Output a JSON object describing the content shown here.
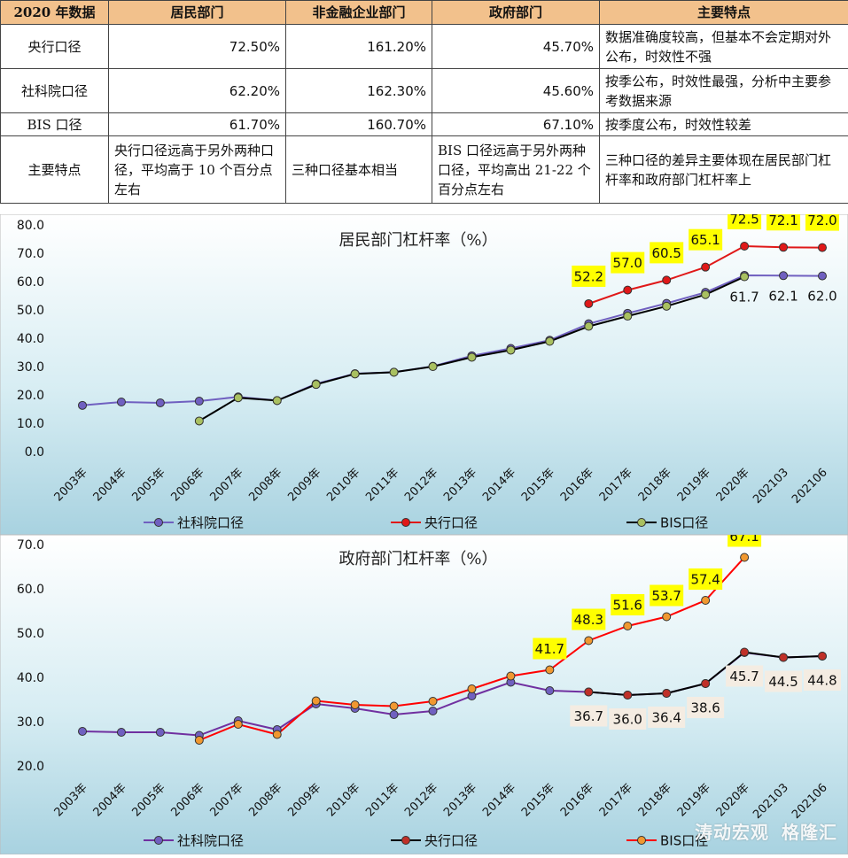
{
  "table": {
    "headers": [
      "2020 年数据",
      "居民部门",
      "非金融企业部门",
      "政府部门",
      "主要特点"
    ],
    "rows": [
      {
        "label": "央行口径",
        "household": "72.50%",
        "corporate": "161.20%",
        "government": "45.70%",
        "feature": "数据准确度较高，但基本不会定期对外公布，时效性不强"
      },
      {
        "label": "社科院口径",
        "household": "62.20%",
        "corporate": "162.30%",
        "government": "45.60%",
        "feature": "按季公布，时效性最强，分析中主要参考数据来源"
      },
      {
        "label": "BIS 口径",
        "household": "61.70%",
        "corporate": "160.70%",
        "government": "67.10%",
        "feature": "按季度公布，时效性较差"
      },
      {
        "label": "主要特点",
        "household": "央行口径远高于另外两种口径，平均高于 10 个百分点左右",
        "corporate": "三种口径基本相当",
        "government": "BIS 口径远高于另外两种口径，平均高出 21-22 个百分点左右",
        "feature": "三种口径的差异主要体现在居民部门杠杆率和政府部门杠杆率上"
      }
    ]
  },
  "chart_data": [
    {
      "type": "line",
      "title": "居民部门杠杆率（%）",
      "categories": [
        "2003年",
        "2004年",
        "2005年",
        "2006年",
        "2007年",
        "2008年",
        "2009年",
        "2010年",
        "2011年",
        "2012年",
        "2013年",
        "2014年",
        "2015年",
        "2016年",
        "2017年",
        "2018年",
        "2019年",
        "2020年",
        "202103",
        "202106"
      ],
      "ylim": [
        0,
        80
      ],
      "yticks": [
        "0.0",
        "10.0",
        "20.0",
        "30.0",
        "40.0",
        "50.0",
        "60.0",
        "70.0",
        "80.0"
      ],
      "legend_position": "bottom",
      "series": [
        {
          "name": "社科院口径",
          "color": "#7060c0",
          "values": [
            16.3,
            17.5,
            17.2,
            17.8,
            19.3,
            18.0,
            23.9,
            27.5,
            28.0,
            30.1,
            33.8,
            36.4,
            39.3,
            45.1,
            48.8,
            52.3,
            56.2,
            62.2,
            62.1,
            62.0
          ]
        },
        {
          "name": "央行口径",
          "color": "#e01818",
          "values": [
            null,
            null,
            null,
            null,
            null,
            null,
            null,
            null,
            null,
            null,
            null,
            null,
            null,
            52.2,
            57.0,
            60.5,
            65.1,
            72.5,
            72.1,
            72.0
          ]
        },
        {
          "name": "BIS口径",
          "color": "#000000",
          "marker": "#a9c060",
          "values": [
            null,
            null,
            null,
            10.8,
            19.0,
            18.0,
            23.7,
            27.4,
            28.0,
            30.0,
            33.3,
            35.8,
            38.9,
            44.2,
            47.8,
            51.3,
            55.4,
            61.7,
            null,
            null
          ]
        }
      ],
      "annotations": {
        "highlight": [
          {
            "index": 13,
            "text": "52.2"
          },
          {
            "index": 14,
            "text": "57.0"
          },
          {
            "index": 15,
            "text": "60.5"
          },
          {
            "index": 16,
            "text": "65.1"
          },
          {
            "index": 17,
            "text": "72.5"
          },
          {
            "index": 18,
            "text": "72.1"
          },
          {
            "index": 19,
            "text": "72.0"
          }
        ],
        "plain": [
          {
            "index": 17,
            "value": 61.7,
            "text": "61.7"
          },
          {
            "index": 18,
            "value": 62.1,
            "text": "62.1"
          },
          {
            "index": 19,
            "value": 62.0,
            "text": "62.0"
          }
        ]
      }
    },
    {
      "type": "line",
      "title": "政府部门杠杆率（%）",
      "categories": [
        "2003年",
        "2004年",
        "2005年",
        "2006年",
        "2007年",
        "2008年",
        "2009年",
        "2010年",
        "2011年",
        "2012年",
        "2013年",
        "2014年",
        "2015年",
        "2016年",
        "2017年",
        "2018年",
        "2019年",
        "2020年",
        "202103",
        "202106"
      ],
      "ylim": [
        20,
        70
      ],
      "yticks": [
        "20.0",
        "30.0",
        "40.0",
        "50.0",
        "60.0",
        "70.0"
      ],
      "legend_position": "bottom",
      "series": [
        {
          "name": "社科院口径",
          "color": "#7030a0",
          "marker": "#7060c0",
          "values": [
            27.8,
            27.6,
            27.6,
            26.9,
            30.2,
            28.2,
            34.0,
            33.0,
            31.6,
            32.4,
            35.8,
            38.9,
            37.0,
            36.7,
            36.0,
            36.4,
            38.6,
            45.6,
            44.5,
            44.8
          ]
        },
        {
          "name": "央行口径",
          "color": "#000000",
          "marker": "#c03028",
          "values": [
            null,
            null,
            null,
            null,
            null,
            null,
            null,
            null,
            null,
            null,
            null,
            null,
            null,
            36.7,
            36.0,
            36.4,
            38.6,
            45.7,
            44.5,
            44.8
          ]
        },
        {
          "name": "BIS口径",
          "color": "#ff0000",
          "marker": "#f09830",
          "values": [
            null,
            null,
            null,
            25.8,
            29.4,
            27.1,
            34.7,
            33.8,
            33.5,
            34.6,
            37.4,
            40.3,
            41.7,
            48.3,
            51.6,
            53.7,
            57.4,
            67.1,
            null,
            null
          ]
        }
      ],
      "annotations": {
        "highlight": [
          {
            "index": 12,
            "text": "41.7"
          },
          {
            "index": 13,
            "text": "48.3"
          },
          {
            "index": 14,
            "text": "51.6"
          },
          {
            "index": 15,
            "text": "53.7"
          },
          {
            "index": 16,
            "text": "57.4"
          },
          {
            "index": 17,
            "text": "67.1"
          }
        ],
        "boxed": [
          {
            "index": 13,
            "text": "36.7"
          },
          {
            "index": 14,
            "text": "36.0"
          },
          {
            "index": 15,
            "text": "36.4"
          },
          {
            "index": 16,
            "text": "38.6"
          },
          {
            "index": 17,
            "text": "45.7"
          },
          {
            "index": 18,
            "text": "44.5"
          },
          {
            "index": 19,
            "text": "44.8"
          }
        ]
      }
    }
  ],
  "watermark": {
    "text1": "涛动宏观",
    "text2": "格隆汇"
  }
}
